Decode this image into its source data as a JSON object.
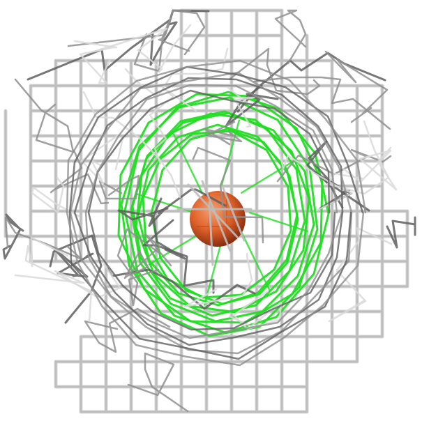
{
  "scene": {
    "background": "#ffffff",
    "mesh_colors": [
      "#bdbdbd",
      "#8f8f8f",
      "#5f5f5f",
      "#d9d9d9"
    ],
    "contour_color": "#22dd22",
    "sphere_color": "#e0622a"
  }
}
